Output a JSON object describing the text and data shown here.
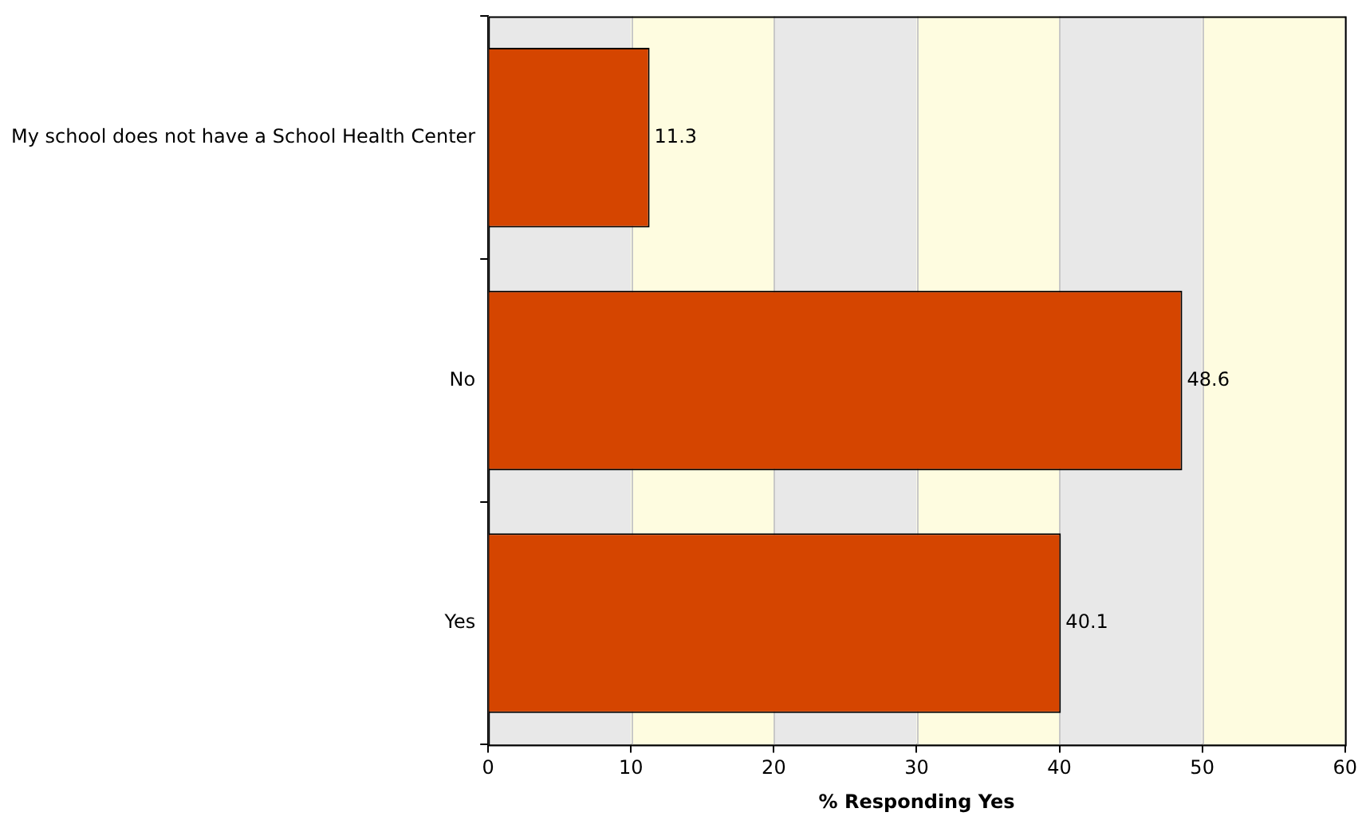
{
  "chart_data": {
    "type": "bar",
    "orientation": "horizontal",
    "xlabel": "% Responding Yes",
    "categories": [
      "My school does not have a School Health Center",
      "No",
      "Yes"
    ],
    "values": [
      11.3,
      48.6,
      40.1
    ],
    "color": "#d54500",
    "data_labels": true,
    "xlim": [
      0,
      60
    ],
    "xticks": [
      0,
      10,
      20,
      30,
      40,
      50,
      60
    ],
    "grid": "x",
    "legend": false,
    "bands": [
      {
        "axis": "x",
        "from": 0,
        "to": 10,
        "color": "#e8e8e8"
      },
      {
        "axis": "x",
        "from": 10,
        "to": 20,
        "color": "#fefce0"
      },
      {
        "axis": "x",
        "from": 20,
        "to": 30,
        "color": "#e8e8e8"
      },
      {
        "axis": "x",
        "from": 30,
        "to": 40,
        "color": "#fefce0"
      },
      {
        "axis": "x",
        "from": 40,
        "to": 50,
        "color": "#e8e8e8"
      },
      {
        "axis": "x",
        "from": 50,
        "to": 60,
        "color": "#fefce0"
      }
    ]
  }
}
